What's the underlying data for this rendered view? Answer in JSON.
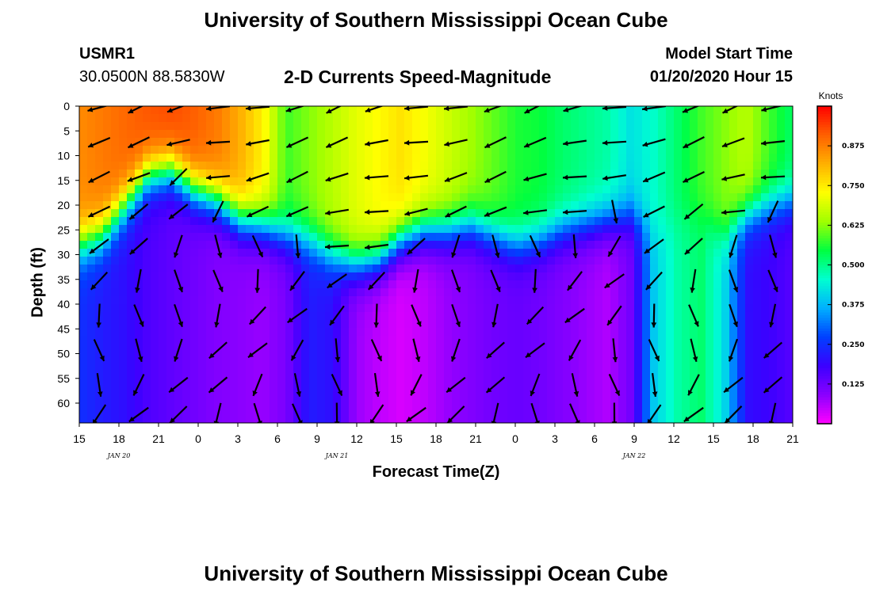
{
  "header": {
    "title": "University of Southern Mississippi Ocean Cube",
    "station": "USMR1",
    "coordinates": "30.0500N 88.5830W",
    "subtitle": "2-D Currents Speed-Magnitude",
    "model_start_label": "Model Start Time",
    "model_start_value": "01/20/2020 Hour 15"
  },
  "footer": {
    "title": "University of Southern Mississippi Ocean Cube"
  },
  "chart_data": {
    "type": "heatmap",
    "title": "2-D Currents Speed-Magnitude",
    "xlabel": "Forecast Time(Z)",
    "ylabel": "Depth (ft)",
    "x_tick_labels": [
      "15",
      "18",
      "21",
      "0",
      "3",
      "6",
      "9",
      "12",
      "15",
      "18",
      "21",
      "0",
      "3",
      "6",
      "9",
      "12",
      "15",
      "18",
      "21"
    ],
    "x_date_labels": [
      "JAN 20",
      "JAN 21",
      "JAN 22"
    ],
    "x_date_tick_index": [
      1,
      6.5,
      14
    ],
    "y_tick_labels": [
      0,
      5,
      10,
      15,
      20,
      25,
      30,
      35,
      40,
      45,
      50,
      55,
      60
    ],
    "ylim": [
      0,
      64
    ],
    "xlim_hours": [
      0,
      54
    ],
    "colorbar": {
      "title": "Knots",
      "ticks": [
        0.125,
        0.25,
        0.375,
        0.5,
        0.625,
        0.75,
        0.875
      ],
      "tick_labels": [
        "0.125",
        "0.250",
        "0.375",
        "0.500",
        "0.625",
        "0.750",
        "0.875"
      ],
      "range": [
        0,
        1.0
      ],
      "colors": [
        "#ff00ff",
        "#8a00ff",
        "#3b00ff",
        "#0040ff",
        "#00b0ff",
        "#00ffd0",
        "#00ff40",
        "#a0ff00",
        "#ffff00",
        "#ffb000",
        "#ff6000",
        "#ff0000"
      ]
    },
    "grid": false,
    "legend": "colorbar-right",
    "mixed_layer_depth_ft": [
      28,
      26,
      20,
      14,
      13,
      17,
      19,
      23,
      24,
      26,
      27,
      30,
      32,
      31,
      27,
      25,
      25,
      24,
      26,
      28,
      27,
      25,
      24,
      23,
      22,
      25,
      23,
      22,
      26,
      22,
      20,
      19
    ],
    "surface_speed_kn": [
      0.86,
      0.88,
      0.9,
      0.92,
      0.93,
      0.91,
      0.88,
      0.82,
      0.74,
      0.58,
      0.62,
      0.66,
      0.7,
      0.73,
      0.76,
      0.72,
      0.68,
      0.64,
      0.6,
      0.56,
      0.55,
      0.52,
      0.5,
      0.48,
      0.42,
      0.46,
      0.52,
      0.58,
      0.62,
      0.66,
      0.58,
      0.52
    ],
    "deep_speed_kn": [
      0.25,
      0.22,
      0.2,
      0.16,
      0.14,
      0.12,
      0.1,
      0.09,
      0.08,
      0.11,
      0.22,
      0.2,
      0.08,
      0.05,
      0.03,
      0.05,
      0.08,
      0.1,
      0.12,
      0.13,
      0.12,
      0.1,
      0.08,
      0.06,
      0.12,
      0.4,
      0.48,
      0.52,
      0.42,
      0.2,
      0.18,
      0.15
    ]
  }
}
